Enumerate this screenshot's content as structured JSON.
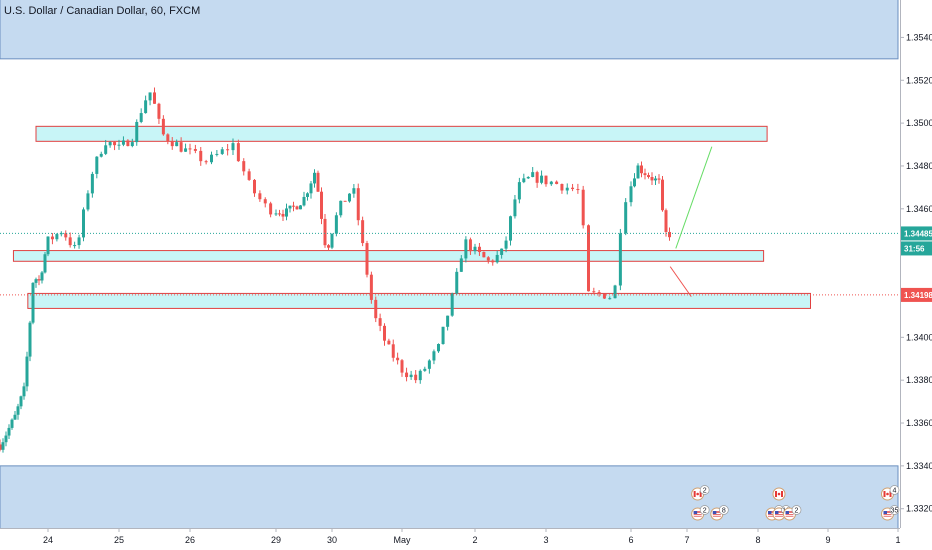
{
  "chart_data": {
    "type": "candlestick",
    "title": "U.S. Dollar / Canadian Dollar, 60, FXCM",
    "x_ticks": [
      "24",
      "25",
      "26",
      "29",
      "30",
      "May",
      "2",
      "3",
      "6",
      "7",
      "8",
      "9",
      "1"
    ],
    "y_ticks": [
      "1.35400",
      "1.35200",
      "1.35000",
      "1.34800",
      "1.34600",
      "1.34400",
      "1.34200",
      "1.34000",
      "1.33800",
      "1.33600",
      "1.33400",
      "1.33200"
    ],
    "ylim": [
      1.3315,
      1.3565
    ],
    "grid": false,
    "price_tags": [
      {
        "label": "1.34485",
        "value": 1.34485,
        "color": "#26a69a"
      },
      {
        "label": "31:56",
        "value": 1.3436,
        "color": "#26a69a"
      },
      {
        "label": "1.34198",
        "value": 1.34198,
        "color": "#ef5350"
      }
    ],
    "zones": [
      {
        "from": 1.353,
        "to": 1.3575,
        "x_from_day": 0.0,
        "x_to_day": 13.0
      },
      {
        "from": 1.33,
        "to": 1.334,
        "x_from_day": 0.0,
        "x_to_day": 13.0
      },
      {
        "from": 1.34915,
        "to": 1.34985,
        "x_from_day": 0.75,
        "x_to_day": 11.13
      },
      {
        "from": 1.34355,
        "to": 1.34405,
        "x_from_day": 0.28,
        "x_to_day": 11.08
      },
      {
        "from": 1.34135,
        "to": 1.34205,
        "x_from_day": 0.58,
        "x_to_day": 11.75
      }
    ],
    "projections": [
      {
        "from_day": 9.8,
        "from_value": 1.34415,
        "to_day": 10.35,
        "to_value": 1.3489,
        "color": "#66dd66"
      },
      {
        "from_day": 9.7,
        "from_value": 1.3433,
        "to_day": 10.06,
        "to_value": 1.3419,
        "color": "#ef5350"
      }
    ],
    "path": [
      [
        0.0,
        1.335
      ],
      [
        0.3,
        1.3362
      ],
      [
        0.5,
        1.3375
      ],
      [
        0.6,
        1.34
      ],
      [
        0.7,
        1.343
      ],
      [
        0.8,
        1.3425
      ],
      [
        1.0,
        1.3445
      ],
      [
        1.2,
        1.345
      ],
      [
        1.4,
        1.344
      ],
      [
        1.6,
        1.3475
      ],
      [
        1.8,
        1.3492
      ],
      [
        2.0,
        1.3488
      ],
      [
        2.2,
        1.3494
      ],
      [
        2.35,
        1.351
      ],
      [
        2.45,
        1.3515
      ],
      [
        2.6,
        1.3495
      ],
      [
        2.9,
        1.3488
      ],
      [
        3.2,
        1.3482
      ],
      [
        3.5,
        1.349
      ],
      [
        3.7,
        1.347
      ],
      [
        3.9,
        1.346
      ],
      [
        4.2,
        1.3458
      ],
      [
        4.5,
        1.3465
      ],
      [
        4.7,
        1.3478
      ],
      [
        4.9,
        1.344
      ],
      [
        5.1,
        1.346
      ],
      [
        5.3,
        1.347
      ],
      [
        5.5,
        1.343
      ],
      [
        5.6,
        1.341
      ],
      [
        5.8,
        1.3395
      ],
      [
        6.0,
        1.3385
      ],
      [
        6.2,
        1.338
      ],
      [
        6.5,
        1.3395
      ],
      [
        6.7,
        1.342
      ],
      [
        6.85,
        1.3445
      ],
      [
        7.0,
        1.344
      ],
      [
        7.2,
        1.3435
      ],
      [
        7.4,
        1.344
      ],
      [
        7.6,
        1.347
      ],
      [
        7.8,
        1.3475
      ],
      [
        8.1,
        1.3472
      ],
      [
        8.4,
        1.3468
      ],
      [
        8.5,
        1.342
      ],
      [
        8.7,
        1.342
      ],
      [
        8.8,
        1.3418
      ],
      [
        8.9,
        1.3462
      ],
      [
        9.1,
        1.348
      ],
      [
        9.3,
        1.3476
      ],
      [
        9.5,
        1.3472
      ],
      [
        9.6,
        1.3448
      ],
      [
        9.7,
        1.34485
      ]
    ],
    "events": [
      {
        "day": 10.15,
        "flag": "ca",
        "count": "2",
        "row": 1
      },
      {
        "day": 10.15,
        "flag": "us",
        "count": "2",
        "row": 2
      },
      {
        "day": 10.42,
        "flag": "us",
        "count": "8",
        "row": 2
      },
      {
        "day": 11.3,
        "flag": "ca",
        "count": "",
        "row": 1
      },
      {
        "day": 11.2,
        "flag": "us",
        "count": "5",
        "row": 2
      },
      {
        "day": 11.3,
        "flag": "us",
        "count": "12",
        "row": 2
      },
      {
        "day": 11.45,
        "flag": "us",
        "count": "2",
        "row": 2
      },
      {
        "day": 12.85,
        "flag": "ca",
        "count": "4",
        "row": 1
      },
      {
        "day": 12.85,
        "flag": "us",
        "count": "35",
        "row": 2
      }
    ]
  },
  "colors": {
    "up": "#26a69a",
    "down": "#ef5350",
    "zone_blue": "#c5daf0",
    "zone_cyan": "#c8f5f7",
    "zone_border": "#e04040",
    "axis_line": "#b2b5be"
  }
}
